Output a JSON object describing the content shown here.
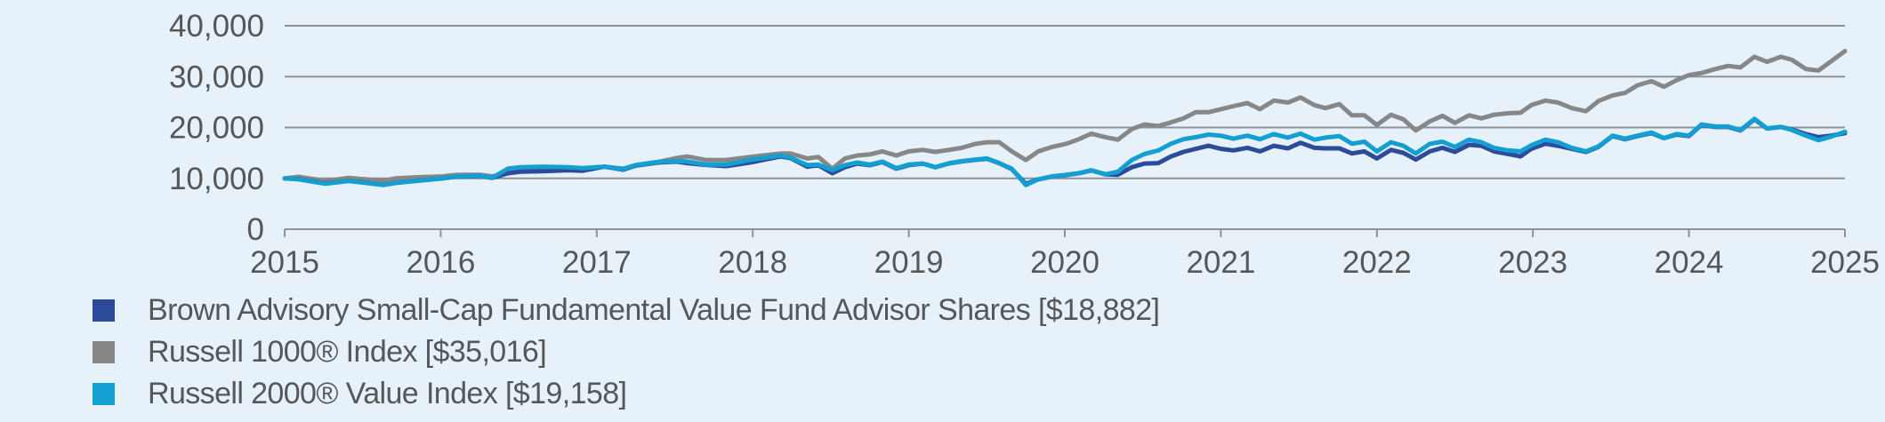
{
  "chart_data": {
    "type": "line",
    "title": "",
    "xlabel": "",
    "ylabel": "",
    "ylim": [
      0,
      40000
    ],
    "xlim": [
      2015,
      2025
    ],
    "yticks": [
      0,
      10000,
      20000,
      30000,
      40000
    ],
    "ytick_labels": [
      "0",
      "10,000",
      "20,000",
      "30,000",
      "40,000"
    ],
    "xticks": [
      2015,
      2016,
      2017,
      2018,
      2019,
      2020,
      2021,
      2022,
      2023,
      2024,
      2025
    ],
    "xtick_labels": [
      "2015",
      "2016",
      "2017",
      "2018",
      "2019",
      "2020",
      "2021",
      "2022",
      "2023",
      "2024",
      "2025"
    ],
    "grid": "horizontal",
    "legend_position": "bottom-left",
    "x": [
      2015.0,
      2015.09,
      2015.26,
      2015.41,
      2015.52,
      2015.63,
      2015.71,
      2015.84,
      2016.01,
      2016.11,
      2016.25,
      2016.33,
      2016.43,
      2016.51,
      2016.65,
      2016.82,
      2016.91,
      2017.05,
      2017.17,
      2017.25,
      2017.39,
      2017.51,
      2017.58,
      2017.7,
      2017.83,
      2017.98,
      2018.18,
      2018.24,
      2018.35,
      2018.42,
      2018.51,
      2018.59,
      2018.67,
      2018.75,
      2018.83,
      2018.92,
      2019.0,
      2019.09,
      2019.17,
      2019.26,
      2019.34,
      2019.43,
      2019.5,
      2019.58,
      2019.66,
      2019.75,
      2019.83,
      2019.92,
      2020.01,
      2020.09,
      2020.17,
      2020.26,
      2020.34,
      2020.43,
      2020.51,
      2020.6,
      2020.68,
      2020.76,
      2020.84,
      2020.92,
      2021.0,
      2021.08,
      2021.17,
      2021.25,
      2021.34,
      2021.43,
      2021.51,
      2021.6,
      2021.67,
      2021.76,
      2021.84,
      2021.92,
      2022.0,
      2022.09,
      2022.17,
      2022.25,
      2022.34,
      2022.42,
      2022.5,
      2022.59,
      2022.67,
      2022.75,
      2022.84,
      2022.92,
      2022.99,
      2023.08,
      2023.16,
      2023.25,
      2023.34,
      2023.42,
      2023.51,
      2023.59,
      2023.67,
      2023.76,
      2023.84,
      2023.92,
      2024.0,
      2024.08,
      2024.17,
      2024.25,
      2024.33,
      2024.42,
      2024.5,
      2024.59,
      2024.66,
      2024.75,
      2024.83,
      2024.91,
      2025.0
    ],
    "series": [
      {
        "name": "Brown Advisory Small-Cap Fundamental Value Fund Advisor Shares",
        "color": "#2d4b9a",
        "final_value": 18882,
        "values": [
          10000,
          9850,
          9000,
          9500,
          9150,
          8700,
          9100,
          9500,
          10000,
          10350,
          10450,
          10100,
          11000,
          11300,
          11400,
          11600,
          11500,
          12300,
          11700,
          12500,
          13100,
          13300,
          13000,
          12650,
          12400,
          13100,
          14300,
          14000,
          12300,
          12600,
          11000,
          12200,
          12900,
          12600,
          13200,
          11900,
          12600,
          12900,
          12200,
          12950,
          13350,
          13650,
          13850,
          13000,
          11800,
          8900,
          9800,
          10350,
          10650,
          11000,
          11550,
          10800,
          10700,
          12200,
          12900,
          13000,
          14300,
          15200,
          15800,
          16400,
          15800,
          15500,
          16000,
          15300,
          16400,
          15900,
          17000,
          16000,
          15900,
          15900,
          14900,
          15300,
          13900,
          15600,
          15000,
          13700,
          15300,
          16000,
          15200,
          16600,
          16400,
          15300,
          14800,
          14300,
          15800,
          16800,
          16400,
          15800,
          15200,
          16200,
          18300,
          17700,
          18300,
          18900,
          17900,
          18600,
          18300,
          20500,
          20100,
          20100,
          19400,
          21600,
          19800,
          20100,
          19600,
          18700,
          18100,
          18400,
          18882
        ]
      },
      {
        "name": "Russell 1000® Index",
        "color": "#878787",
        "final_value": 35016,
        "values": [
          10000,
          10300,
          9500,
          10100,
          9800,
          9500,
          10000,
          10200,
          10400,
          10700,
          10700,
          10400,
          11000,
          11400,
          11700,
          11900,
          11900,
          12300,
          11900,
          12600,
          13200,
          14000,
          14300,
          13600,
          13600,
          14200,
          14900,
          14900,
          13900,
          14200,
          11900,
          13900,
          14500,
          14700,
          15300,
          14500,
          15300,
          15600,
          15200,
          15600,
          16000,
          16800,
          17100,
          17100,
          15300,
          13600,
          15300,
          16200,
          16800,
          17700,
          18800,
          18100,
          17600,
          19700,
          20600,
          20300,
          21000,
          21800,
          23000,
          23000,
          23600,
          24200,
          24800,
          23600,
          25300,
          24900,
          25900,
          24400,
          23800,
          24600,
          22400,
          22400,
          20500,
          22500,
          21600,
          19400,
          21200,
          22300,
          20900,
          22400,
          21800,
          22500,
          22800,
          22900,
          24400,
          25300,
          24900,
          23800,
          23200,
          25200,
          26300,
          26800,
          28300,
          29100,
          28000,
          29300,
          30300,
          30700,
          31500,
          32100,
          31800,
          33900,
          32900,
          33900,
          33300,
          31500,
          31200,
          33000,
          35016
        ]
      },
      {
        "name": "Russell 2000® Value Index",
        "color": "#149fd3",
        "final_value": 19158,
        "values": [
          10000,
          9800,
          8950,
          9500,
          9100,
          8700,
          9100,
          9500,
          10000,
          10400,
          10500,
          10100,
          11900,
          12200,
          12300,
          12200,
          12000,
          12300,
          11800,
          12600,
          13200,
          13400,
          13300,
          12700,
          12700,
          13600,
          14500,
          14100,
          12600,
          12700,
          11600,
          12600,
          13100,
          12700,
          13300,
          12000,
          12700,
          12900,
          12200,
          13000,
          13400,
          13700,
          13900,
          13000,
          11900,
          8700,
          9800,
          10400,
          10700,
          11000,
          11600,
          10800,
          11300,
          13600,
          14800,
          15500,
          16800,
          17700,
          18100,
          18600,
          18400,
          17800,
          18400,
          17700,
          18700,
          18000,
          18800,
          17600,
          18000,
          18300,
          16800,
          17200,
          15300,
          17100,
          16400,
          14900,
          16800,
          17200,
          16200,
          17600,
          17100,
          16000,
          15500,
          15300,
          16500,
          17600,
          17100,
          16000,
          15300,
          16300,
          18400,
          17800,
          18400,
          19000,
          17900,
          18700,
          18400,
          20600,
          20200,
          20200,
          19500,
          21700,
          19800,
          20100,
          19500,
          18400,
          17500,
          18200,
          19158
        ]
      }
    ]
  },
  "legend": {
    "items": [
      {
        "label": "Brown Advisory Small-Cap Fundamental Value Fund Advisor Shares [$18,882]",
        "color": "#2d4b9a"
      },
      {
        "label": "Russell 1000® Index [$35,016]",
        "color": "#878787"
      },
      {
        "label": "Russell 2000® Value Index [$19,158]",
        "color": "#149fd3"
      }
    ]
  }
}
